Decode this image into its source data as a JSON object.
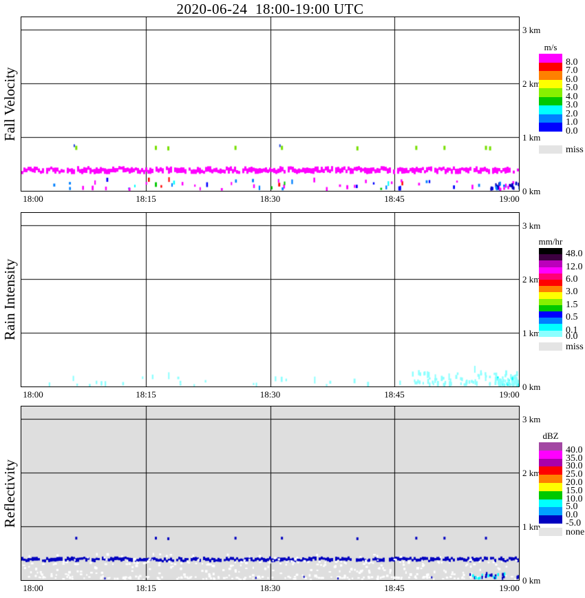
{
  "title": "2020-06-24  18:00-19:00 UTC",
  "x_ticks": [
    "18:00",
    "18:15",
    "18:30",
    "18:45",
    "19:00"
  ],
  "km_ticks": [
    "3 km",
    "2 km",
    "1 km",
    "0 km"
  ],
  "panels": [
    {
      "label": "Fall Velocity"
    },
    {
      "label": "Rain Intensity"
    },
    {
      "label": "Reflectivity"
    }
  ],
  "chart_data": [
    {
      "type": "heatmap",
      "name": "Fall Velocity",
      "unit": "m/s",
      "x_axis": {
        "start": "18:00",
        "end": "19:00",
        "tick_labels": [
          "18:00",
          "18:15",
          "18:30",
          "18:45",
          "19:00"
        ],
        "minutes": 60
      },
      "y_axis": {
        "tick_labels": [
          "0 km",
          "1 km",
          "2 km",
          "3 km"
        ],
        "max_km": 3.23
      },
      "background": "#FFFFFF",
      "legend": {
        "title": "m/s",
        "band_colors": [
          "#FF00FF",
          "#FF0000",
          "#FF8000",
          "#FFFF00",
          "#86F000",
          "#00C800",
          "#00FFFF",
          "#0080FF",
          "#0000FF"
        ],
        "labels": [
          {
            "after": 1,
            "text": "8.0"
          },
          {
            "after": 2,
            "text": "7.0"
          },
          {
            "after": 3,
            "text": "6.0"
          },
          {
            "after": 4,
            "text": "5.0"
          },
          {
            "after": 5,
            "text": "4.0"
          },
          {
            "after": 6,
            "text": "3.0"
          },
          {
            "after": 7,
            "text": "2.0"
          },
          {
            "after": 8,
            "text": "1.0"
          },
          {
            "after": 9,
            "text": "0.0"
          }
        ],
        "missing": {
          "label": "miss",
          "color": "#E4E4E4"
        }
      },
      "seed": 7,
      "features": [
        {
          "type": "stripe",
          "t": [
            0,
            60
          ],
          "km": [
            0.31,
            0.46
          ],
          "color": "#FF00FF",
          "density": 0.92,
          "step": 3,
          "h": [
            4,
            9
          ],
          "note": "continuous speckled band of >8 m/s echo at ~0.38 km altitude across full hour"
        },
        {
          "type": "dots",
          "color": "#77E000",
          "w": 3,
          "h": 6,
          "list": [
            [
              6.5,
              0.8
            ],
            [
              16.1,
              0.8
            ],
            [
              17.6,
              0.79
            ],
            [
              25.7,
              0.8
            ],
            [
              31.3,
              0.8
            ],
            [
              40.4,
              0.79
            ],
            [
              47.5,
              0.8
            ],
            [
              50.9,
              0.8
            ],
            [
              55.9,
              0.8
            ],
            [
              56.4,
              0.79
            ]
          ],
          "note": "isolated 4-5 m/s echoes near 0.8 km"
        },
        {
          "type": "dots",
          "color": "#2244DD",
          "w": 2,
          "h": 4,
          "list": [
            [
              6.3,
              0.84
            ],
            [
              31.1,
              0.84
            ]
          ]
        },
        {
          "type": "speckle",
          "t": [
            0.5,
            59.5
          ],
          "km": [
            0.0,
            0.17
          ],
          "count": 62,
          "bias": 1.4,
          "w": [
            2,
            3
          ],
          "h": [
            3,
            7
          ],
          "colors": [
            [
              "#FF00FF",
              0.45
            ],
            [
              "#0080FF",
              0.2
            ],
            [
              "#0000FF",
              0.15
            ],
            [
              "#00FFFF",
              0.08
            ],
            [
              "#FF0000",
              0.06
            ],
            [
              "#00C800",
              0.06
            ]
          ],
          "note": "mixed low-level scatter below 0.2 km"
        },
        {
          "type": "speckle",
          "t": [
            56.5,
            60
          ],
          "km": [
            0.0,
            0.12
          ],
          "count": 32,
          "bias": 1.2,
          "w": [
            2,
            3
          ],
          "h": [
            3,
            6
          ],
          "colors": [
            [
              "#0000C0",
              0.5
            ],
            [
              "#0080FF",
              0.25
            ],
            [
              "#FF00FF",
              0.25
            ]
          ],
          "note": "denser cluster just before 19:00"
        }
      ]
    },
    {
      "type": "heatmap",
      "name": "Rain Intensity",
      "unit": "mm/hr",
      "x_axis": {
        "start": "18:00",
        "end": "19:00",
        "tick_labels": [
          "18:00",
          "18:15",
          "18:30",
          "18:45",
          "19:00"
        ],
        "minutes": 60
      },
      "y_axis": {
        "tick_labels": [
          "0 km",
          "1 km",
          "2 km",
          "3 km"
        ],
        "max_km": 3.23
      },
      "background": "#FFFFFF",
      "legend": {
        "title": "mm/hr",
        "band_colors": [
          "#000000",
          "#3D0040",
          "#BB00BB",
          "#FF00FF",
          "#FF0077",
          "#FF0000",
          "#FF8000",
          "#FFFF00",
          "#86F000",
          "#00C800",
          "#0000FF",
          "#0080FF",
          "#00FFFF",
          "#8CFFFF"
        ],
        "labels": [
          {
            "after": 1,
            "text": "48.0"
          },
          {
            "after": 3,
            "text": "12.0"
          },
          {
            "after": 5,
            "text": "6.0"
          },
          {
            "after": 7,
            "text": "3.0"
          },
          {
            "after": 9,
            "text": "1.5"
          },
          {
            "after": 11,
            "text": "0.5"
          },
          {
            "after": 13,
            "text": "0.1"
          },
          {
            "after": 14,
            "text": "0.0"
          }
        ],
        "missing": {
          "label": "miss",
          "color": "#E4E4E4"
        }
      },
      "seed": 13,
      "features": [
        {
          "type": "speckle",
          "t": [
            3,
            47
          ],
          "km": [
            0.0,
            0.16
          ],
          "count": 26,
          "bias": 1.8,
          "w": [
            2,
            3
          ],
          "h": [
            3,
            8
          ],
          "colors": [
            [
              "#8CFFFF",
              1
            ]
          ],
          "note": "sparse 0.0-0.1 mm/hr drizzle echoes below 0.2 km"
        },
        {
          "type": "speckle",
          "t": [
            47,
            60
          ],
          "km": [
            0.0,
            0.22
          ],
          "count": 75,
          "bias": 1.8,
          "w": [
            2,
            3
          ],
          "h": [
            3,
            8
          ],
          "colors": [
            [
              "#8CFFFF",
              1
            ]
          ],
          "note": "light rain signal increasing after 18:45"
        },
        {
          "type": "speckle",
          "t": [
            57.3,
            60
          ],
          "km": [
            0.0,
            0.14
          ],
          "count": 45,
          "bias": 1.3,
          "w": [
            2,
            3
          ],
          "h": [
            3,
            6
          ],
          "colors": [
            [
              "#8CFFFF",
              0.8
            ],
            [
              "#00FFFF",
              0.2
            ]
          ],
          "note": "densest patch at 19:00"
        },
        {
          "type": "dots",
          "color": "#8CFFFF",
          "w": 2,
          "h": 10,
          "list": [
            [
              17.7,
              0.2
            ],
            [
              35.3,
              0.12
            ],
            [
              48.9,
              0.22
            ],
            [
              51.5,
              0.18
            ],
            [
              54.6,
              0.32
            ]
          ]
        }
      ]
    },
    {
      "type": "heatmap",
      "name": "Reflectivity",
      "unit": "dBZ",
      "x_axis": {
        "start": "18:00",
        "end": "19:00",
        "tick_labels": [
          "18:00",
          "18:15",
          "18:30",
          "18:45",
          "19:00"
        ],
        "minutes": 60
      },
      "y_axis": {
        "tick_labels": [
          "0 km",
          "1 km",
          "2 km",
          "3 km"
        ],
        "max_km": 3.23
      },
      "background": "#DEDEDE",
      "legend": {
        "title": "dBZ",
        "band_colors": [
          "#A347A3",
          "#FF00FF",
          "#AA00AA",
          "#FF0000",
          "#FF8000",
          "#FFFF00",
          "#00C800",
          "#00FFFF",
          "#00A0FF",
          "#0000C0"
        ],
        "labels": [
          {
            "after": 1,
            "text": "40.0"
          },
          {
            "after": 2,
            "text": "35.0"
          },
          {
            "after": 3,
            "text": "30.0"
          },
          {
            "after": 4,
            "text": "25.0"
          },
          {
            "after": 5,
            "text": "20.0"
          },
          {
            "after": 6,
            "text": "15.0"
          },
          {
            "after": 7,
            "text": "10.0"
          },
          {
            "after": 8,
            "text": "5.0"
          },
          {
            "after": 9,
            "text": "0.0"
          },
          {
            "after": 10,
            "text": "-5.0"
          }
        ],
        "missing": {
          "label": "none",
          "color": "#E4E4E4"
        }
      },
      "seed": 5,
      "features": [
        {
          "type": "stripe",
          "t": [
            0,
            60
          ],
          "km": [
            0.33,
            0.44
          ],
          "color": "#0000C0",
          "density": 0.9,
          "step": 3,
          "h": [
            3,
            6
          ],
          "note": "continuous ~-5 dBZ echo band at ~0.38 km across full hour"
        },
        {
          "type": "speckle",
          "t": [
            0,
            60
          ],
          "km": [
            0.3,
            0.46
          ],
          "count": 60,
          "bias": 1,
          "w": [
            2,
            4
          ],
          "h": [
            2,
            4
          ],
          "colors": [
            [
              "#FFFFFF",
              1
            ]
          ]
        },
        {
          "type": "speckle",
          "t": [
            0,
            60
          ],
          "km": [
            0.25,
            0.33
          ],
          "count": 80,
          "bias": 1,
          "w": [
            2,
            4
          ],
          "h": [
            2,
            3
          ],
          "colors": [
            [
              "#FFFFFF",
              1
            ]
          ],
          "note": "white missing-data flecks under the echo band"
        },
        {
          "type": "speckle",
          "t": [
            0,
            60
          ],
          "km": [
            0.02,
            0.25
          ],
          "count": 150,
          "bias": 1.3,
          "w": [
            2,
            4
          ],
          "h": [
            2,
            4
          ],
          "colors": [
            [
              "#FFFFFF",
              1
            ]
          ]
        },
        {
          "type": "speckle",
          "t": [
            0,
            60
          ],
          "km": [
            0.0,
            0.05
          ],
          "count": 120,
          "bias": 1,
          "w": [
            2,
            4
          ],
          "h": [
            2,
            3
          ],
          "colors": [
            [
              "#FFFFFF",
              1
            ]
          ]
        },
        {
          "type": "dots",
          "color": "#0000C0",
          "w": 3,
          "h": 4,
          "list": [
            [
              6.5,
              0.78
            ],
            [
              16.1,
              0.78
            ],
            [
              17.6,
              0.77
            ],
            [
              25.7,
              0.78
            ],
            [
              31.3,
              0.78
            ],
            [
              40.4,
              0.77
            ],
            [
              47.5,
              0.78
            ],
            [
              50.9,
              0.78
            ],
            [
              55.9,
              0.78
            ]
          ],
          "note": "isolated weak echoes near 0.8 km matching fall-velocity dots"
        },
        {
          "type": "dots",
          "color": "#0000C0",
          "w": 2,
          "h": 3,
          "list": [
            [
              10,
              0.03
            ],
            [
              28.2,
              0.04
            ],
            [
              34,
              0.06
            ],
            [
              38.1,
              0.03
            ],
            [
              49.4,
              0.05
            ]
          ]
        },
        {
          "type": "speckle",
          "t": [
            54,
            60
          ],
          "km": [
            0.0,
            0.1
          ],
          "count": 28,
          "bias": 1.2,
          "w": [
            2,
            3
          ],
          "h": [
            3,
            5
          ],
          "colors": [
            [
              "#0000C0",
              0.55
            ],
            [
              "#00FFFF",
              0.45
            ]
          ],
          "note": "blue/cyan cluster in bottom-right corner near 19:00"
        }
      ]
    }
  ]
}
